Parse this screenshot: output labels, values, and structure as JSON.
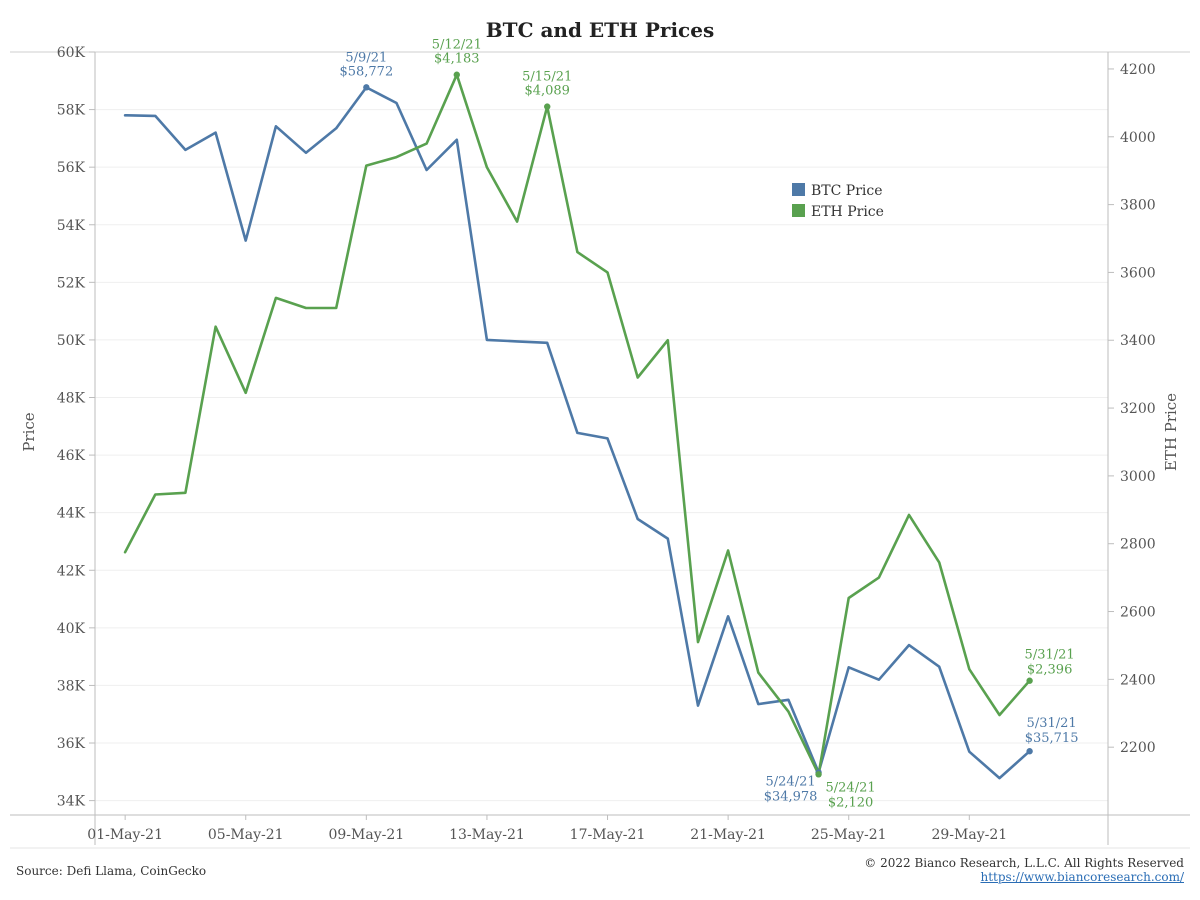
{
  "title": "BTC and ETH Prices",
  "source": "Source: Defi Llama, CoinGecko",
  "copyright": "© 2022 Bianco Research, L.L.C. All Rights Reserved",
  "url": "https://www.biancoresearch.com/",
  "chart_data": {
    "type": "line",
    "title": "BTC and ETH Prices",
    "ylabel": "Price",
    "y2label": "ETH Price",
    "ylim": [
      33500,
      60000
    ],
    "y2lim": [
      2000,
      4250
    ],
    "y_ticks": [
      34000,
      36000,
      38000,
      40000,
      42000,
      44000,
      46000,
      48000,
      50000,
      52000,
      54000,
      56000,
      58000,
      60000
    ],
    "y_tick_labels": [
      "34K",
      "36K",
      "38K",
      "40K",
      "42K",
      "44K",
      "46K",
      "48K",
      "50K",
      "52K",
      "54K",
      "56K",
      "58K",
      "60K"
    ],
    "y2_ticks": [
      2200,
      2400,
      2600,
      2800,
      3000,
      3200,
      3400,
      3600,
      3800,
      4000,
      4200
    ],
    "x_tick_labels": [
      "01-May-21",
      "05-May-21",
      "09-May-21",
      "13-May-21",
      "17-May-21",
      "21-May-21",
      "25-May-21",
      "29-May-21"
    ],
    "x_tick_days": [
      1,
      5,
      9,
      13,
      17,
      21,
      25,
      29
    ],
    "xlim": [
      0,
      33.6
    ],
    "grid": true,
    "legend_position": "upper-middle-right",
    "x_days": [
      1,
      2,
      3,
      4,
      5,
      6,
      7,
      8,
      9,
      10,
      11,
      12,
      13,
      14,
      15,
      16,
      17,
      18,
      19,
      20,
      21,
      22,
      23,
      24,
      25,
      26,
      27,
      28,
      29,
      30,
      31
    ],
    "series": [
      {
        "name": "BTC Price",
        "axis": "left",
        "color": "#4e79a7",
        "values": [
          57800,
          57780,
          56600,
          57200,
          53450,
          57420,
          56500,
          57350,
          58772,
          58230,
          55900,
          56950,
          50000,
          49950,
          49900,
          46770,
          46580,
          43780,
          43100,
          37300,
          40400,
          37350,
          37500,
          34978,
          38630,
          38200,
          39400,
          38650,
          35700,
          34780,
          35715
        ]
      },
      {
        "name": "ETH Price",
        "axis": "right",
        "color": "#59a14f",
        "values": [
          2775,
          2945,
          2950,
          3440,
          3245,
          3525,
          3495,
          3495,
          3915,
          3940,
          3980,
          4183,
          3910,
          3750,
          4089,
          3660,
          3600,
          3290,
          3400,
          2510,
          2780,
          2420,
          2305,
          2120,
          2640,
          2700,
          2885,
          2745,
          2430,
          2295,
          2396
        ]
      }
    ],
    "annotations": [
      {
        "series": "BTC Price",
        "day": 9,
        "date": "5/9/21",
        "value": "$58,772"
      },
      {
        "series": "ETH Price",
        "day": 12,
        "date": "5/12/21",
        "value": "$4,183"
      },
      {
        "series": "ETH Price",
        "day": 15,
        "date": "5/15/21",
        "value": "$4,089"
      },
      {
        "series": "ETH Price",
        "day": 31,
        "date": "5/31/21",
        "value": "$2,396"
      },
      {
        "series": "BTC Price",
        "day": 31,
        "date": "5/31/21",
        "value": "$35,715"
      },
      {
        "series": "BTC Price",
        "day": 24,
        "date": "5/24/21",
        "value": "$34,978"
      },
      {
        "series": "ETH Price",
        "day": 24,
        "date": "5/24/21",
        "value": "$2,120"
      }
    ]
  }
}
